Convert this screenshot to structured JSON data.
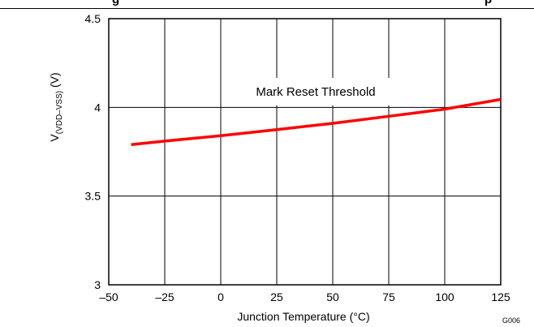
{
  "header": {
    "title_fragment_left": "g",
    "title_fragment_right": "p"
  },
  "chart_data": {
    "type": "line",
    "xlabel": "Junction Temperature (°C)",
    "ylabel_main": "V",
    "ylabel_sub": "(VDD–VSS)",
    "ylabel_unit": " (V)",
    "xlim": [
      -50,
      125
    ],
    "ylim": [
      3,
      4.5
    ],
    "x_ticks": [
      -50,
      -25,
      0,
      25,
      50,
      75,
      100,
      125
    ],
    "x_tick_labels": [
      "–50",
      "–25",
      "0",
      "25",
      "50",
      "75",
      "100",
      "125"
    ],
    "y_ticks": [
      3,
      3.5,
      4,
      4.5
    ],
    "y_tick_labels": [
      "3",
      "3.5",
      "4",
      "4.5"
    ],
    "grid": true,
    "series": [
      {
        "name": "Mark Reset Threshold",
        "color": "#ff0000",
        "x": [
          -40,
          -25,
          0,
          25,
          50,
          75,
          100,
          125
        ],
        "y": [
          3.79,
          3.81,
          3.84,
          3.875,
          3.91,
          3.95,
          3.99,
          4.045
        ]
      }
    ],
    "annotations": [
      "Mark Reset Threshold"
    ],
    "figure_code": "G006"
  }
}
